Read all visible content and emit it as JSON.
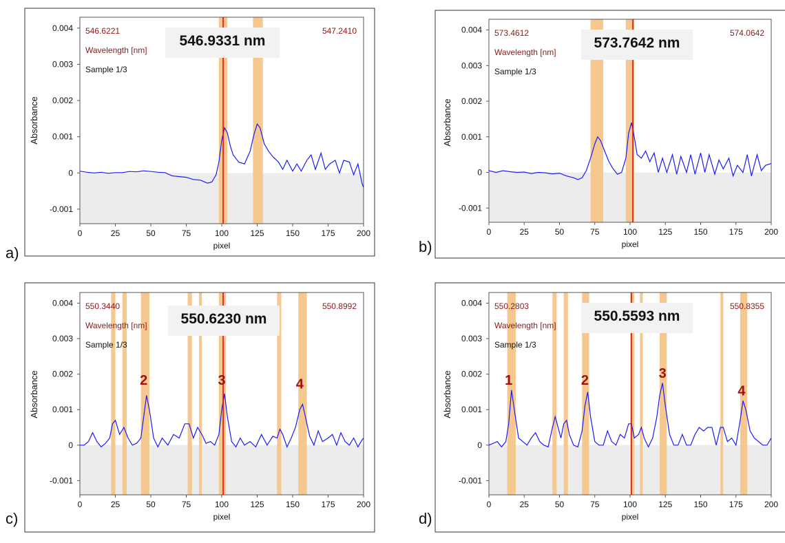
{
  "chart_data": [
    {
      "panel": "a)",
      "type": "line",
      "xlabel": "pixel",
      "ylabel": "Absorbance",
      "xlim": [
        0,
        200
      ],
      "ylim": [
        -0.0014,
        0.0043
      ],
      "xticks": [
        0,
        25,
        50,
        75,
        100,
        125,
        150,
        175,
        200
      ],
      "yticks": [
        "0.004",
        "0.003",
        "0.002",
        "0.001",
        "0",
        "-0.001"
      ],
      "yticks_values": [
        0.004,
        0.003,
        0.002,
        0.001,
        0,
        -0.001
      ],
      "wl_left": "546.6221",
      "wl_right": "547.2410",
      "wl_label": "Wavelength [nm]",
      "sample": "Sample 1/3",
      "box_text": "546.9331 nm",
      "cursor_x": 101,
      "bands": [
        [
          98,
          104
        ],
        [
          122,
          129
        ]
      ],
      "peak_labels": [],
      "series": [
        {
          "x": [
            0,
            5,
            10,
            15,
            20,
            25,
            30,
            35,
            40,
            45,
            50,
            55,
            60,
            65,
            70,
            75,
            80,
            85,
            90,
            93,
            96,
            98,
            100,
            102,
            104,
            106,
            108,
            112,
            116,
            120,
            123,
            125,
            127,
            130,
            133,
            136,
            140,
            143,
            146,
            150,
            153,
            156,
            160,
            163,
            166,
            170,
            173,
            176,
            180,
            183,
            186,
            190,
            193,
            196,
            199,
            200
          ],
          "y": [
            5e-05,
            2e-05,
            0.0,
            2e-05,
            -1e-05,
            1e-05,
            1e-05,
            4e-05,
            3e-05,
            6e-05,
            4e-05,
            2e-05,
            1e-05,
            -8e-05,
            -0.0001,
            -0.00012,
            -0.00018,
            -0.0002,
            -0.00028,
            -0.00025,
            -5e-05,
            0.0003,
            0.0009,
            0.00125,
            0.0011,
            0.00075,
            0.0005,
            0.0003,
            0.00025,
            0.0006,
            0.0011,
            0.00135,
            0.00125,
            0.0008,
            0.0006,
            0.00045,
            0.0003,
            0.0001,
            0.00035,
            5e-05,
            0.00025,
            5e-05,
            0.00035,
            0.0005,
            0.0001,
            0.00055,
            0.0001,
            0.00025,
            0.00035,
            0.0,
            0.00035,
            0.0003,
            -5e-05,
            0.00025,
            -0.0003,
            -0.0004
          ]
        }
      ]
    },
    {
      "panel": "b)",
      "type": "line",
      "xlabel": "pixel",
      "ylabel": "Absorbance",
      "xlim": [
        0,
        200
      ],
      "ylim": [
        -0.0014,
        0.0043
      ],
      "xticks": [
        0,
        25,
        50,
        75,
        100,
        125,
        150,
        175,
        200
      ],
      "yticks": [
        "0.004",
        "0.003",
        "0.002",
        "0.001",
        "0",
        "-0.001"
      ],
      "yticks_values": [
        0.004,
        0.003,
        0.002,
        0.001,
        0,
        -0.001
      ],
      "wl_left": "573.4612",
      "wl_right": "574.0642",
      "wl_label": "Wavelength [nm]",
      "sample": "Sample 1/3",
      "box_text": "573.7642 nm",
      "cursor_x": 102,
      "bands": [
        [
          72,
          81
        ],
        [
          97,
          103
        ]
      ],
      "peak_labels": [],
      "series": [
        {
          "x": [
            0,
            5,
            10,
            15,
            20,
            25,
            30,
            35,
            40,
            45,
            50,
            55,
            60,
            63,
            66,
            69,
            72,
            75,
            77,
            79,
            82,
            85,
            88,
            91,
            94,
            97,
            99,
            101,
            103,
            105,
            108,
            111,
            114,
            117,
            120,
            123,
            126,
            130,
            133,
            136,
            140,
            143,
            146,
            150,
            153,
            156,
            160,
            163,
            166,
            170,
            173,
            176,
            180,
            183,
            186,
            190,
            193,
            196,
            200
          ],
          "y": [
            5e-05,
            0.0,
            5e-05,
            2e-05,
            0.0,
            1e-05,
            -3e-05,
            0.0,
            -1e-05,
            -4e-05,
            -2e-05,
            -0.0001,
            -0.00015,
            -0.0002,
            -0.00015,
            5e-05,
            0.0004,
            0.0008,
            0.001,
            0.0009,
            0.0006,
            0.0003,
            0.0001,
            -5e-05,
            0.0,
            0.0004,
            0.0011,
            0.0014,
            0.001,
            0.0005,
            0.0004,
            0.0006,
            0.0003,
            0.00055,
            0.0,
            0.0004,
            0.0,
            0.0005,
            -5e-05,
            0.00045,
            0.0,
            0.0005,
            -5e-05,
            0.00055,
            0.0,
            0.0005,
            -5e-05,
            0.00035,
            0.0001,
            0.0004,
            -0.0001,
            0.0002,
            0.0,
            0.0005,
            -0.0001,
            0.0005,
            5e-05,
            0.0002,
            0.00025
          ]
        }
      ]
    },
    {
      "panel": "c)",
      "type": "line",
      "xlabel": "pixel",
      "ylabel": "Absorbance",
      "xlim": [
        0,
        200
      ],
      "ylim": [
        -0.0014,
        0.0043
      ],
      "xticks": [
        0,
        25,
        50,
        75,
        100,
        125,
        150,
        175,
        200
      ],
      "yticks": [
        "0.004",
        "0.003",
        "0.002",
        "0.001",
        "0",
        "-0.001"
      ],
      "yticks_values": [
        0.004,
        0.003,
        0.002,
        0.001,
        0,
        -0.001
      ],
      "wl_left": "550.3440",
      "wl_right": "550.8992",
      "wl_label": "Wavelength [nm]",
      "sample": "Sample 1/3",
      "box_text": "550.6230 nm",
      "cursor_x": 101,
      "bands": [
        [
          22,
          25
        ],
        [
          30,
          33
        ],
        [
          43,
          49
        ],
        [
          76,
          79
        ],
        [
          84,
          86
        ],
        [
          98,
          103
        ],
        [
          139,
          142
        ],
        [
          154,
          160
        ]
      ],
      "peak_labels": [
        {
          "x": 45,
          "y": 0.0017,
          "text": "2"
        },
        {
          "x": 100,
          "y": 0.0017,
          "text": "3"
        },
        {
          "x": 155,
          "y": 0.0016,
          "text": "4"
        }
      ],
      "series": [
        {
          "x": [
            0,
            3,
            6,
            9,
            12,
            15,
            18,
            21,
            23,
            25,
            28,
            31,
            34,
            37,
            40,
            43,
            45,
            47,
            49,
            52,
            55,
            58,
            62,
            66,
            70,
            74,
            77,
            80,
            83,
            86,
            89,
            92,
            95,
            98,
            100,
            102,
            104,
            107,
            110,
            113,
            116,
            120,
            124,
            128,
            132,
            136,
            139,
            141,
            143,
            146,
            149,
            152,
            155,
            157,
            159,
            162,
            165,
            168,
            171,
            175,
            178,
            181,
            184,
            187,
            190,
            193,
            196,
            199,
            200
          ],
          "y": [
            0.0,
            0.0,
            0.0001,
            0.00035,
            0.0001,
            -5e-05,
            5e-05,
            0.0002,
            0.0006,
            0.0007,
            0.0003,
            0.0005,
            0.0002,
            0.0,
            5e-05,
            0.0002,
            0.0008,
            0.0014,
            0.001,
            0.0002,
            -5e-05,
            0.0002,
            0.0,
            0.0003,
            0.0002,
            0.0006,
            0.0006,
            0.0002,
            0.0005,
            0.0003,
            5e-05,
            0.0001,
            0.0,
            0.0003,
            0.001,
            0.00145,
            0.0008,
            0.0001,
            -5e-05,
            0.0002,
            0.0,
            0.0001,
            -5e-05,
            0.0003,
            0.0,
            0.00025,
            0.0002,
            0.00045,
            0.0003,
            -5e-05,
            0.0002,
            0.0005,
            0.001,
            0.00115,
            0.0008,
            0.00025,
            0.0,
            0.0004,
            0.0001,
            0.0002,
            0.0003,
            0.0,
            0.00035,
            0.0001,
            0.0,
            0.0002,
            -5e-05,
            0.00015,
            0.0002
          ]
        }
      ]
    },
    {
      "panel": "d)",
      "type": "line",
      "xlabel": "pixel",
      "ylabel": "Absorbance",
      "xlim": [
        0,
        200
      ],
      "ylim": [
        -0.0014,
        0.0043
      ],
      "xticks": [
        0,
        25,
        50,
        75,
        100,
        125,
        150,
        175,
        200
      ],
      "yticks": [
        "0.004",
        "0.003",
        "0.002",
        "0.001",
        "0",
        "-0.001"
      ],
      "yticks_values": [
        0.004,
        0.003,
        0.002,
        0.001,
        0,
        -0.001
      ],
      "wl_left": "550.2803",
      "wl_right": "550.8355",
      "wl_label": "Wavelength [nm]",
      "sample": "Sample 1/3",
      "box_text": "550.5593 nm",
      "cursor_x": 101,
      "bands": [
        [
          13,
          19
        ],
        [
          45,
          48
        ],
        [
          53,
          56
        ],
        [
          66,
          71
        ],
        [
          100,
          103
        ],
        [
          107,
          109
        ],
        [
          121,
          126
        ],
        [
          164,
          166
        ],
        [
          178,
          183
        ]
      ],
      "peak_labels": [
        {
          "x": 14,
          "y": 0.0017,
          "text": "1"
        },
        {
          "x": 68,
          "y": 0.0017,
          "text": "2"
        },
        {
          "x": 123,
          "y": 0.0019,
          "text": "3"
        },
        {
          "x": 179,
          "y": 0.0014,
          "text": "4"
        }
      ],
      "series": [
        {
          "x": [
            0,
            3,
            6,
            9,
            12,
            14,
            16,
            18,
            21,
            24,
            27,
            30,
            33,
            36,
            39,
            42,
            45,
            47,
            49,
            51,
            53,
            55,
            57,
            60,
            63,
            66,
            68,
            70,
            72,
            75,
            78,
            81,
            84,
            87,
            90,
            93,
            96,
            99,
            101,
            103,
            106,
            108,
            110,
            113,
            116,
            119,
            121,
            123,
            125,
            128,
            131,
            134,
            137,
            140,
            143,
            146,
            149,
            152,
            155,
            158,
            161,
            164,
            166,
            169,
            172,
            175,
            178,
            180,
            182,
            185,
            188,
            191,
            194,
            197,
            200
          ],
          "y": [
            0.0,
            5e-05,
            0.0001,
            -5e-05,
            0.0001,
            0.0006,
            0.00155,
            0.001,
            0.0002,
            0.0001,
            0.0,
            0.0002,
            0.00035,
            0.0001,
            0.0,
            -5e-05,
            0.0005,
            0.0008,
            0.0005,
            0.0002,
            0.0006,
            0.0007,
            0.0003,
            0.0,
            -5e-05,
            0.0004,
            0.0011,
            0.0015,
            0.0008,
            0.0001,
            0.0,
            0.0,
            0.0004,
            0.0001,
            0.0,
            0.0003,
            0.0002,
            0.0006,
            0.0006,
            0.0002,
            0.0003,
            0.0005,
            0.0002,
            -5e-05,
            0.0002,
            0.0008,
            0.0014,
            0.00175,
            0.0011,
            0.0003,
            0.0,
            0.0,
            0.0003,
            0.0,
            0.0,
            0.0003,
            0.0005,
            0.0004,
            0.0005,
            0.0005,
            0.0,
            0.0005,
            0.0005,
            0.0001,
            0.0002,
            0.0,
            0.0007,
            0.00125,
            0.001,
            0.0004,
            0.0002,
            0.0001,
            0.0,
            0.0,
            0.0002
          ]
        }
      ]
    }
  ],
  "colors": {
    "series": "#1a1aff",
    "band": "#f5c890",
    "cursor": "#e00000",
    "wavelength_text": "#8b1a1a",
    "peak_label": "#a01010",
    "negative_fill": "#ececec",
    "box": "#f2f2f2"
  }
}
